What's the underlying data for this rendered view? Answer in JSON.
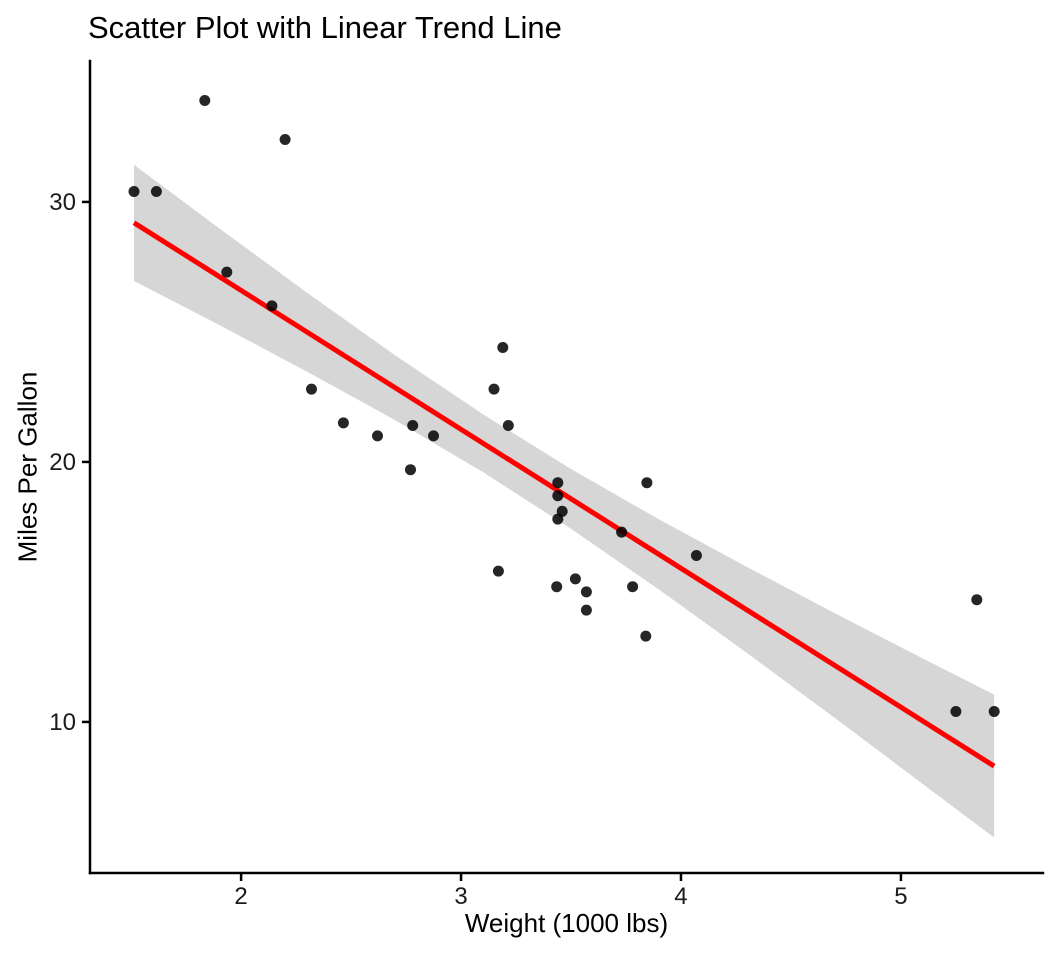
{
  "chart_data": {
    "type": "scatter",
    "title": "Scatter Plot with Linear Trend Line",
    "xlabel": "Weight (1000 lbs)",
    "ylabel": "Miles Per Gallon",
    "xlim": [
      1.313,
      5.646
    ],
    "ylim": [
      4.19,
      35.42
    ],
    "x_ticks": [
      2,
      3,
      4,
      5
    ],
    "y_ticks": [
      10,
      20,
      30
    ],
    "grid": false,
    "legend": "none",
    "background_color": "#ffffff",
    "point_color": "#000000",
    "point_opacity": 0.85,
    "point_radius": 5.5,
    "axis_color": "#000000",
    "tick_label_color": "#1a1a1a",
    "points": [
      [
        2.62,
        21.0
      ],
      [
        2.875,
        21.0
      ],
      [
        2.32,
        22.8
      ],
      [
        3.215,
        21.4
      ],
      [
        3.44,
        18.7
      ],
      [
        3.46,
        18.1
      ],
      [
        3.57,
        14.3
      ],
      [
        3.19,
        24.4
      ],
      [
        3.15,
        22.8
      ],
      [
        3.44,
        19.2
      ],
      [
        3.44,
        17.8
      ],
      [
        4.07,
        16.4
      ],
      [
        3.73,
        17.3
      ],
      [
        3.78,
        15.2
      ],
      [
        5.25,
        10.4
      ],
      [
        5.424,
        10.4
      ],
      [
        5.345,
        14.7
      ],
      [
        2.2,
        32.4
      ],
      [
        1.615,
        30.4
      ],
      [
        1.835,
        33.9
      ],
      [
        2.465,
        21.5
      ],
      [
        3.52,
        15.5
      ],
      [
        3.435,
        15.2
      ],
      [
        3.84,
        13.3
      ],
      [
        3.845,
        19.2
      ],
      [
        1.935,
        27.3
      ],
      [
        2.14,
        26.0
      ],
      [
        1.513,
        30.4
      ],
      [
        3.17,
        15.8
      ],
      [
        2.77,
        19.7
      ],
      [
        3.57,
        15.0
      ],
      [
        2.78,
        21.4
      ]
    ],
    "trend_line": {
      "intercept": 37.285,
      "slope": -5.344,
      "x_start": 1.513,
      "x_end": 5.424,
      "color": "#ff0000",
      "width": 5
    },
    "confidence_band": {
      "fill": "#d6d6d6",
      "x": [
        1.513,
        1.9,
        2.3,
        2.7,
        3.1,
        3.5,
        3.9,
        4.3,
        4.7,
        5.1,
        5.424
      ],
      "upper": [
        31.43,
        28.99,
        26.51,
        24.1,
        21.83,
        19.73,
        17.79,
        15.96,
        14.18,
        12.44,
        11.05
      ],
      "lower": [
        26.96,
        25.27,
        23.47,
        21.61,
        19.61,
        17.43,
        15.09,
        12.65,
        10.15,
        7.61,
        5.55
      ]
    }
  }
}
